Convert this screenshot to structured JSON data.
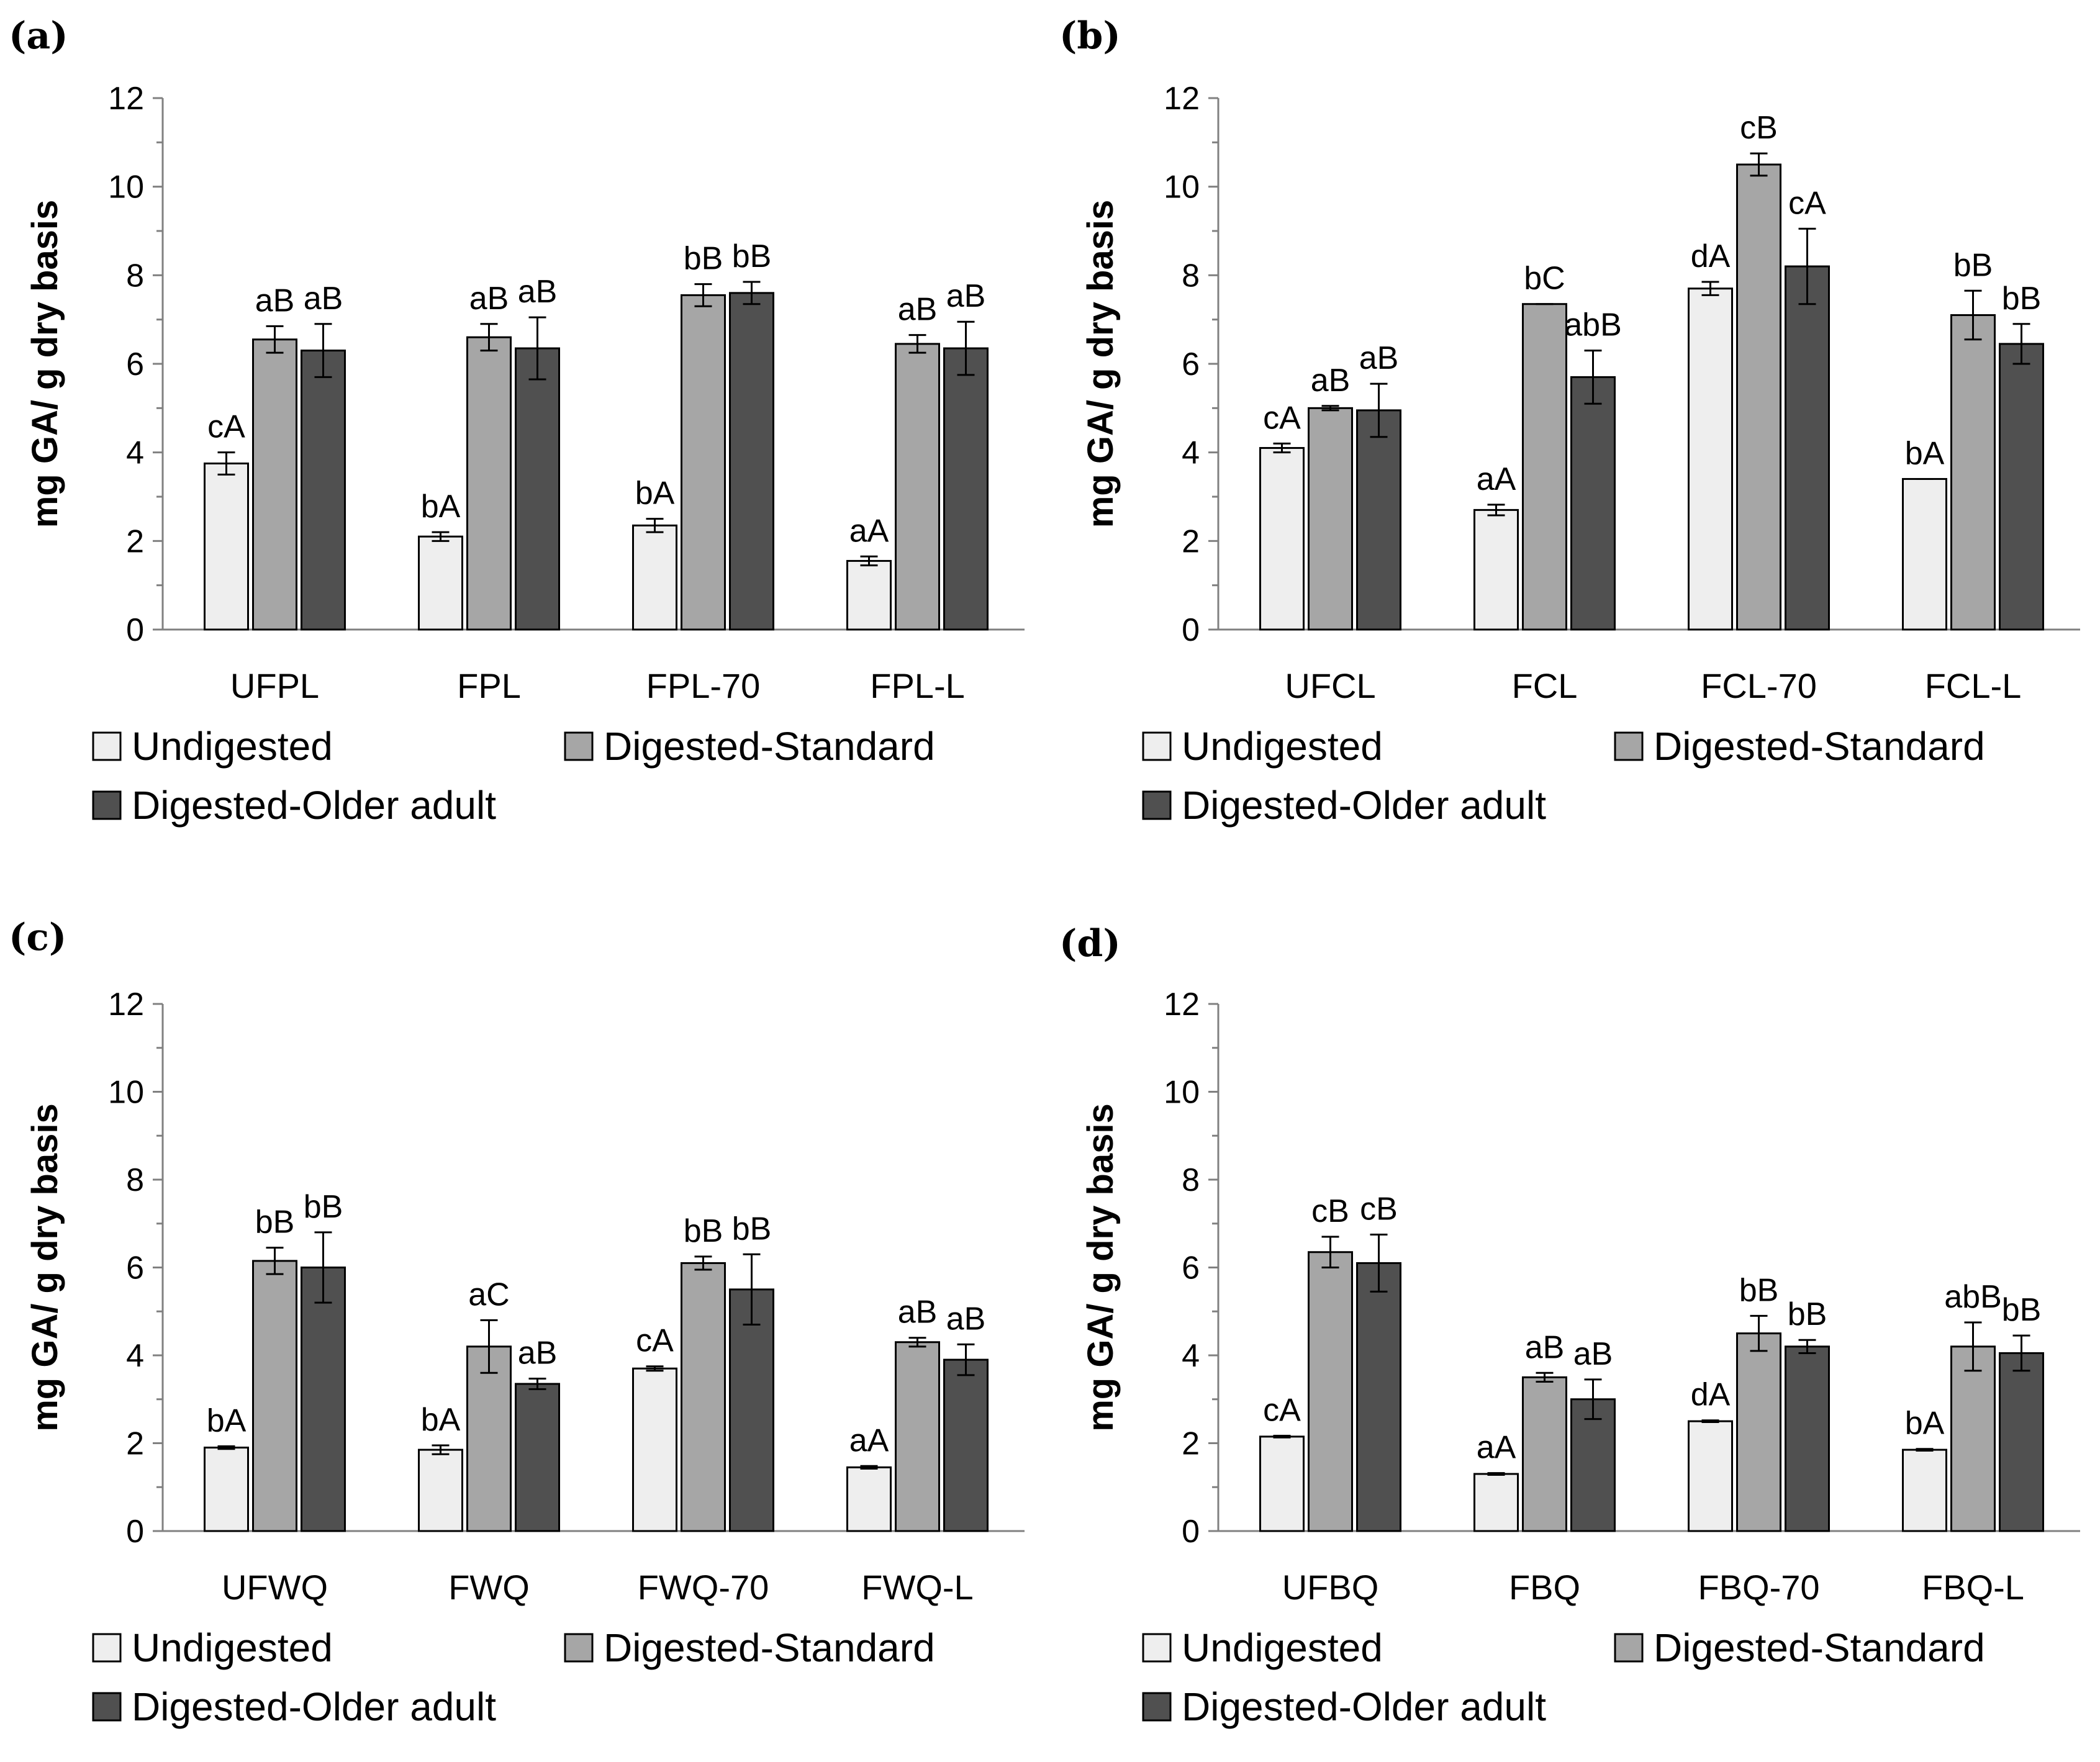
{
  "chart_data": [
    {
      "panel": "(a)",
      "type": "bar",
      "ylabel": "mg GA/ g dry basis",
      "ylim": [
        0,
        12
      ],
      "yticks": [
        0,
        2,
        4,
        6,
        8,
        10,
        12
      ],
      "categories": [
        "UFPL",
        "FPL",
        "FPL-70",
        "FPL-L"
      ],
      "series": [
        {
          "name": "Undigested",
          "color": "#eeeeee",
          "values": [
            3.75,
            2.1,
            2.35,
            1.55
          ],
          "errors": [
            0.25,
            0.1,
            0.15,
            0.1
          ],
          "labels": [
            "cA",
            "bA",
            "bA",
            "aA"
          ]
        },
        {
          "name": "Digested-Standard",
          "color": "#a6a6a6",
          "values": [
            6.55,
            6.6,
            7.55,
            6.45
          ],
          "errors": [
            0.3,
            0.3,
            0.25,
            0.2
          ],
          "labels": [
            "aB",
            "aB",
            "bB",
            "aB"
          ]
        },
        {
          "name": "Digested-Older adult",
          "color": "#505050",
          "values": [
            6.3,
            6.35,
            7.6,
            6.35
          ],
          "errors": [
            0.6,
            0.7,
            0.25,
            0.6
          ],
          "labels": [
            "aB",
            "aB",
            "bB",
            "aB"
          ]
        }
      ]
    },
    {
      "panel": "(b)",
      "type": "bar",
      "ylabel": "mg GA/ g dry basis",
      "ylim": [
        0,
        12
      ],
      "yticks": [
        0,
        2,
        4,
        6,
        8,
        10,
        12
      ],
      "categories": [
        "UFCL",
        "FCL",
        "FCL-70",
        "FCL-L"
      ],
      "series": [
        {
          "name": "Undigested",
          "color": "#eeeeee",
          "values": [
            4.1,
            2.7,
            7.7,
            3.4
          ],
          "errors": [
            0.1,
            0.12,
            0.15,
            0.0
          ],
          "labels": [
            "cA",
            "aA",
            "dA",
            "bA"
          ]
        },
        {
          "name": "Digested-Standard",
          "color": "#a6a6a6",
          "values": [
            5.0,
            7.35,
            10.5,
            7.1
          ],
          "errors": [
            0.05,
            0.0,
            0.25,
            0.55
          ],
          "labels": [
            "aB",
            "bC",
            "cB",
            "bB"
          ]
        },
        {
          "name": "Digested-Older adult",
          "color": "#505050",
          "values": [
            4.95,
            5.7,
            8.2,
            6.45
          ],
          "errors": [
            0.6,
            0.6,
            0.85,
            0.45
          ],
          "labels": [
            "aB",
            "abB",
            "cA",
            "bB"
          ]
        }
      ]
    },
    {
      "panel": "(c)",
      "type": "bar",
      "ylabel": "mg GA/ g dry basis",
      "ylim": [
        0,
        12
      ],
      "yticks": [
        0,
        2,
        4,
        6,
        8,
        10,
        12
      ],
      "categories": [
        "UFWQ",
        "FWQ",
        "FWQ-70",
        "FWQ-L"
      ],
      "series": [
        {
          "name": "Undigested",
          "color": "#eeeeee",
          "values": [
            1.9,
            1.85,
            3.7,
            1.45
          ],
          "errors": [
            0.03,
            0.1,
            0.05,
            0.03
          ],
          "labels": [
            "bA",
            "bA",
            "cA",
            "aA"
          ]
        },
        {
          "name": "Digested-Standard",
          "color": "#a6a6a6",
          "values": [
            6.15,
            4.2,
            6.1,
            4.3
          ],
          "errors": [
            0.3,
            0.6,
            0.15,
            0.1
          ],
          "labels": [
            "bB",
            "aC",
            "bB",
            "aB"
          ]
        },
        {
          "name": "Digested-Older adult",
          "color": "#505050",
          "values": [
            6.0,
            3.35,
            5.5,
            3.9
          ],
          "errors": [
            0.8,
            0.12,
            0.8,
            0.35
          ],
          "labels": [
            "bB",
            "aB",
            "bB",
            "aB"
          ]
        }
      ]
    },
    {
      "panel": "(d)",
      "type": "bar",
      "ylabel": "mg GA/ g dry basis",
      "ylim": [
        0,
        12
      ],
      "yticks": [
        0,
        2,
        4,
        6,
        8,
        10,
        12
      ],
      "categories": [
        "UFBQ",
        "FBQ",
        "FBQ-70",
        "FBQ-L"
      ],
      "series": [
        {
          "name": "Undigested",
          "color": "#eeeeee",
          "values": [
            2.15,
            1.3,
            2.5,
            1.85
          ],
          "errors": [
            0.02,
            0.02,
            0.02,
            0.02
          ],
          "labels": [
            "cA",
            "aA",
            "dA",
            "bA"
          ]
        },
        {
          "name": "Digested-Standard",
          "color": "#a6a6a6",
          "values": [
            6.35,
            3.5,
            4.5,
            4.2
          ],
          "errors": [
            0.35,
            0.1,
            0.4,
            0.55
          ],
          "labels": [
            "cB",
            "aB",
            "bB",
            "abB"
          ]
        },
        {
          "name": "Digested-Older adult",
          "color": "#505050",
          "values": [
            6.1,
            3.0,
            4.2,
            4.05
          ],
          "errors": [
            0.65,
            0.45,
            0.15,
            0.4
          ],
          "labels": [
            "cB",
            "aB",
            "bB",
            "bB"
          ]
        }
      ]
    }
  ]
}
